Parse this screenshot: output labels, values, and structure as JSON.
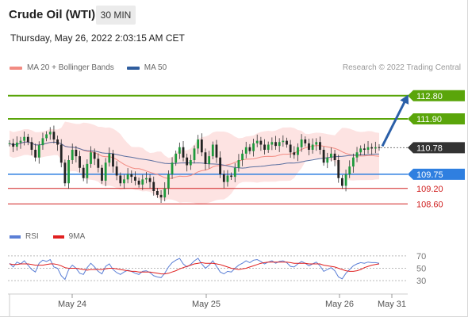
{
  "header": {
    "title": "Crude Oil (WTI)",
    "timeframe": "30 MIN",
    "timestamp": "Thursday, May 26, 2022 2:03:15 AM CET"
  },
  "legend": {
    "items": [
      {
        "label": "MA 20 + Bollinger Bands",
        "color": "#f28b82"
      },
      {
        "label": "MA 50",
        "color": "#2f5d9e"
      }
    ],
    "credit": "Research © 2022 Trading Central"
  },
  "rsi_legend": {
    "items": [
      {
        "label": "RSI",
        "color": "#5b7fd6"
      },
      {
        "label": "9MA",
        "color": "#e02020"
      }
    ]
  },
  "chart_data": [
    {
      "type": "candlestick",
      "ylim": [
        107.9,
        113.5
      ],
      "levels": [
        {
          "value": 112.8,
          "label": "112.80",
          "color": "#5aa50a",
          "kind": "resistance"
        },
        {
          "value": 111.9,
          "label": "111.90",
          "color": "#5aa50a",
          "kind": "resistance"
        },
        {
          "value": 110.78,
          "label": "110.78",
          "color": "#333333",
          "kind": "last-price"
        },
        {
          "value": 109.75,
          "label": "109.75",
          "color": "#2f7fe0",
          "kind": "pivot"
        },
        {
          "value": 109.2,
          "label": "109.20",
          "color": "#d02020",
          "kind": "support"
        },
        {
          "value": 108.6,
          "label": "108.60",
          "color": "#d02020",
          "kind": "support"
        }
      ],
      "forecast_arrow": {
        "from": 110.78,
        "to": 112.8,
        "color": "#2a5fa8"
      },
      "x_ticks": [
        "May 24",
        "May 25",
        "May 26",
        "May 31"
      ],
      "close": [
        110.95,
        110.82,
        110.98,
        111.05,
        111.2,
        111.0,
        110.7,
        110.4,
        110.88,
        111.15,
        111.3,
        111.4,
        111.1,
        110.9,
        110.2,
        109.4,
        110.3,
        110.7,
        110.45,
        110.0,
        109.6,
        110.15,
        110.6,
        110.35,
        110.0,
        109.5,
        110.2,
        110.55,
        110.05,
        109.7,
        109.4,
        109.55,
        109.75,
        109.65,
        109.5,
        109.35,
        109.55,
        109.6,
        109.45,
        109.1,
        108.95,
        108.85,
        109.2,
        109.75,
        110.2,
        110.55,
        110.8,
        110.4,
        110.1,
        110.3,
        110.75,
        111.1,
        110.6,
        110.15,
        110.45,
        110.9,
        110.4,
        109.75,
        109.45,
        109.7,
        109.65,
        110.0,
        110.3,
        110.55,
        110.8,
        110.65,
        110.95,
        111.05,
        110.9,
        110.7,
        110.9,
        111.0,
        110.85,
        111.0,
        111.05,
        110.9,
        110.6,
        110.5,
        110.8,
        111.1,
        110.95,
        110.7,
        110.9,
        111.0,
        110.7,
        110.2,
        110.4,
        110.55,
        110.3,
        109.6,
        109.3,
        109.75,
        110.05,
        110.4,
        110.6,
        110.75,
        110.7,
        110.8,
        110.75,
        110.8,
        110.78
      ],
      "rsi": {
        "ylim": [
          20,
          80
        ],
        "ticks": [
          70,
          50,
          30
        ],
        "rsi": [
          58,
          52,
          60,
          57,
          62,
          55,
          48,
          44,
          58,
          63,
          61,
          64,
          52,
          50,
          38,
          32,
          48,
          55,
          50,
          42,
          40,
          51,
          58,
          52,
          45,
          41,
          53,
          57,
          48,
          43,
          40,
          44,
          47,
          45,
          42,
          40,
          45,
          46,
          43,
          38,
          36,
          35,
          42,
          52,
          59,
          63,
          66,
          57,
          52,
          56,
          62,
          66,
          57,
          50,
          55,
          62,
          53,
          44,
          41,
          45,
          44,
          50,
          55,
          58,
          62,
          59,
          63,
          64,
          61,
          57,
          60,
          62,
          58,
          61,
          62,
          59,
          53,
          52,
          57,
          61,
          58,
          54,
          57,
          60,
          54,
          45,
          48,
          51,
          46,
          36,
          33,
          42,
          48,
          54,
          57,
          59,
          58,
          60,
          59,
          59,
          58
        ],
        "ma9": [
          57,
          56,
          56,
          57,
          57,
          57,
          56,
          55,
          55,
          55,
          56,
          57,
          57,
          56,
          54,
          51,
          50,
          50,
          50,
          49,
          48,
          47,
          48,
          48,
          48,
          48,
          49,
          50,
          50,
          49,
          48,
          47,
          46,
          45,
          45,
          44,
          44,
          44,
          44,
          43,
          42,
          41,
          41,
          42,
          44,
          46,
          49,
          51,
          53,
          55,
          57,
          58,
          59,
          58,
          58,
          58,
          57,
          56,
          54,
          52,
          50,
          49,
          48,
          49,
          50,
          52,
          54,
          56,
          58,
          59,
          60,
          60,
          60,
          60,
          60,
          60,
          59,
          58,
          58,
          58,
          58,
          57,
          57,
          57,
          57,
          55,
          54,
          53,
          52,
          50,
          48,
          46,
          45,
          45,
          46,
          48,
          51,
          53,
          55,
          56,
          57
        ]
      }
    }
  ]
}
